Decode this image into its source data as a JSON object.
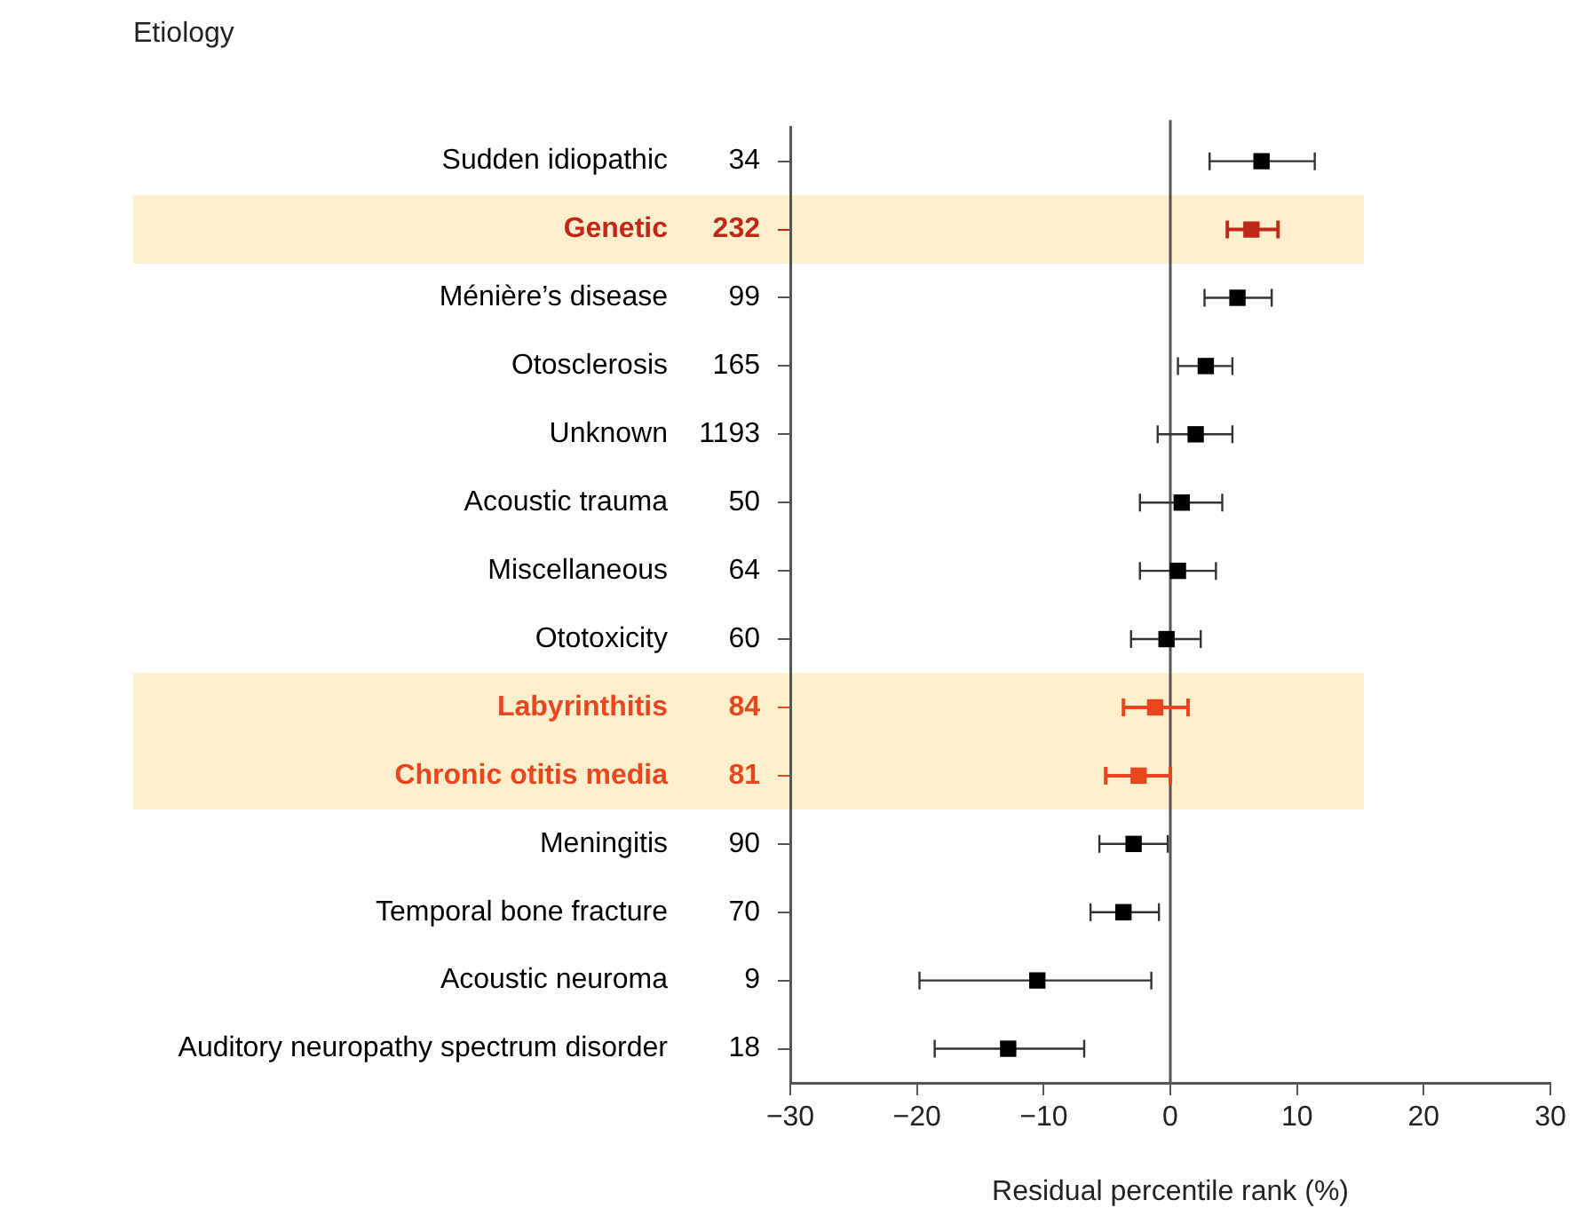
{
  "chart_data": {
    "type": "scatter",
    "orientation": "horizontal",
    "ylabel": "Etiology",
    "xlabel": "Residual percentile rank (%)",
    "categories": [
      "Sudden idiopathic",
      "Genetic",
      "Ménière’s disease",
      "Otosclerosis",
      "Unknown",
      "Acoustic trauma",
      "Miscellaneous",
      "Ototoxicity",
      "Labyrinthitis",
      "Chronic otitis media",
      "Meningitis",
      "Temporal bone fracture",
      "Acoustic neuroma",
      "Auditory neuropathy spectrum disorder"
    ],
    "values": [
      7.2,
      6.4,
      5.3,
      2.8,
      2.0,
      0.9,
      0.6,
      -0.3,
      -1.2,
      -2.5,
      -2.9,
      -3.7,
      -10.5,
      -12.8
    ],
    "errors": [
      [
        3.1,
        11.4
      ],
      [
        4.5,
        8.5
      ],
      [
        2.7,
        8.0
      ],
      [
        0.6,
        4.9
      ],
      [
        -1.0,
        4.9
      ],
      [
        -2.4,
        4.1
      ],
      [
        -2.4,
        3.6
      ],
      [
        -3.1,
        2.4
      ],
      [
        -3.7,
        1.4
      ],
      [
        -5.1,
        0.0
      ],
      [
        -5.6,
        -0.2
      ],
      [
        -6.3,
        -0.9
      ],
      [
        -19.8,
        -1.5
      ],
      [
        -18.6,
        -6.8
      ]
    ],
    "colors": [
      "#000000",
      "#c0281c",
      "#000000",
      "#000000",
      "#000000",
      "#000000",
      "#000000",
      "#000000",
      "#e8461e",
      "#e8461e",
      "#000000",
      "#000000",
      "#000000",
      "#000000"
    ],
    "annotations": [
      "34",
      "232",
      "99",
      "165",
      "1193",
      "50",
      "64",
      "60",
      "84",
      "81",
      "90",
      "70",
      "9",
      "18"
    ],
    "bands": [
      {
        "axis": "y",
        "from": "Genetic",
        "to": "Genetic",
        "color": "#fdefcc"
      },
      {
        "axis": "y",
        "from": "Labyrinthitis",
        "to": "Chronic otitis media",
        "color": "#fdefcc"
      }
    ],
    "ref_lines": [
      {
        "axis": "x",
        "value": 0,
        "color": "#555555"
      }
    ],
    "xlim": [
      -30,
      30
    ],
    "xticks": [
      {
        "value": -30,
        "label": "−30"
      },
      {
        "value": -20,
        "label": "−20"
      },
      {
        "value": -10,
        "label": "−10"
      },
      0,
      10,
      20,
      30
    ],
    "grid": false,
    "legend": false,
    "marker": "square"
  }
}
